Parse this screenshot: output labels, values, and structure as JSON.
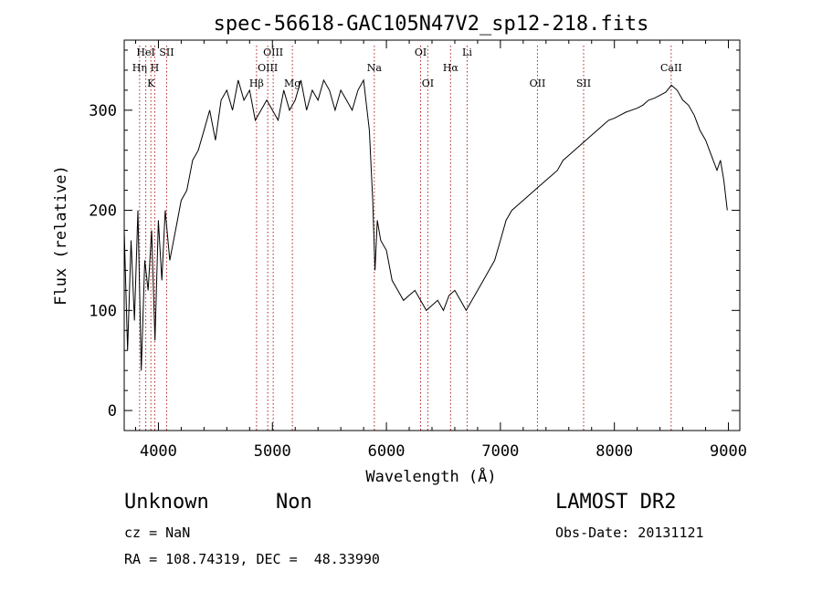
{
  "chart_data": {
    "type": "line",
    "title": "spec-56618-GAC105N47V2_sp12-218.fits",
    "xlabel": "Wavelength (Å)",
    "ylabel": "Flux (relative)",
    "xlim": [
      3700,
      9100
    ],
    "ylim": [
      -20,
      370
    ],
    "xticks": [
      4000,
      5000,
      6000,
      7000,
      8000,
      9000
    ],
    "yticks": [
      0,
      100,
      200,
      300
    ],
    "grid": false,
    "line_color": "#000000",
    "marker_color": "#b22222",
    "series": [
      {
        "x": [
          3700,
          3730,
          3760,
          3790,
          3820,
          3850,
          3880,
          3910,
          3940,
          3970,
          4000,
          4030,
          4060,
          4100,
          4150,
          4200,
          4250,
          4300,
          4350,
          4400,
          4450,
          4500,
          4550,
          4600,
          4650,
          4700,
          4750,
          4800,
          4850,
          4900,
          4950,
          5000,
          5050,
          5100,
          5150,
          5200,
          5250,
          5300,
          5350,
          5400,
          5450,
          5500,
          5550,
          5600,
          5650,
          5700,
          5750,
          5800,
          5850,
          5880,
          5900,
          5920,
          5950,
          6000,
          6050,
          6100,
          6150,
          6200,
          6250,
          6300,
          6350,
          6400,
          6450,
          6500,
          6550,
          6600,
          6650,
          6700,
          6750,
          6800,
          6850,
          6900,
          6950,
          7000,
          7050,
          7100,
          7150,
          7200,
          7250,
          7300,
          7350,
          7400,
          7450,
          7500,
          7550,
          7600,
          7650,
          7700,
          7750,
          7800,
          7850,
          7900,
          7950,
          8000,
          8050,
          8100,
          8150,
          8200,
          8250,
          8300,
          8350,
          8400,
          8450,
          8500,
          8550,
          8600,
          8650,
          8700,
          8750,
          8800,
          8850,
          8900,
          8930,
          8960,
          8990
        ],
        "y": [
          180,
          60,
          170,
          90,
          200,
          40,
          150,
          120,
          180,
          70,
          190,
          130,
          200,
          150,
          180,
          210,
          220,
          250,
          260,
          280,
          300,
          270,
          310,
          320,
          300,
          330,
          310,
          320,
          290,
          300,
          310,
          300,
          290,
          320,
          300,
          310,
          330,
          300,
          320,
          310,
          330,
          320,
          300,
          320,
          310,
          300,
          320,
          330,
          280,
          210,
          140,
          190,
          170,
          160,
          130,
          120,
          110,
          115,
          120,
          110,
          100,
          105,
          110,
          100,
          115,
          120,
          110,
          100,
          110,
          120,
          130,
          140,
          150,
          170,
          190,
          200,
          205,
          210,
          215,
          220,
          225,
          230,
          235,
          240,
          250,
          255,
          260,
          265,
          270,
          275,
          280,
          285,
          290,
          292,
          295,
          298,
          300,
          302,
          305,
          310,
          312,
          315,
          318,
          325,
          320,
          310,
          305,
          295,
          280,
          270,
          255,
          240,
          250,
          230,
          200
        ]
      }
    ],
    "line_markers": [
      {
        "label": "HeI",
        "x": 3889,
        "row": 1
      },
      {
        "label": "Hη",
        "x": 3835,
        "row": 2
      },
      {
        "label": "K",
        "x": 3934,
        "row": 3
      },
      {
        "label": "H",
        "x": 3968,
        "row": 2
      },
      {
        "label": "SII",
        "x": 4072,
        "row": 1
      },
      {
        "label": "Hβ",
        "x": 4861,
        "row": 3
      },
      {
        "label": "OIII",
        "x": 4959,
        "row": 2
      },
      {
        "label": "OIII",
        "x": 5007,
        "row": 1
      },
      {
        "label": "Mg",
        "x": 5175,
        "row": 3
      },
      {
        "label": "Na",
        "x": 5894,
        "row": 2
      },
      {
        "label": "OI",
        "x": 6300,
        "row": 1
      },
      {
        "label": "OI",
        "x": 6363,
        "row": 3
      },
      {
        "label": "Hα",
        "x": 6563,
        "row": 2
      },
      {
        "label": "Li",
        "x": 6708,
        "row": 1
      },
      {
        "label": "OII",
        "x": 7325,
        "row": 3
      },
      {
        "label": "SII",
        "x": 7730,
        "row": 3
      },
      {
        "label": "CaII",
        "x": 8498,
        "row": 2
      }
    ]
  },
  "info": {
    "class": "Unknown",
    "subclass": "Non",
    "survey": "LAMOST DR2",
    "cz": "cz = NaN",
    "obs_date": "Obs-Date: 20131121",
    "coords": "RA = 108.74319, DEC =  48.33990"
  }
}
